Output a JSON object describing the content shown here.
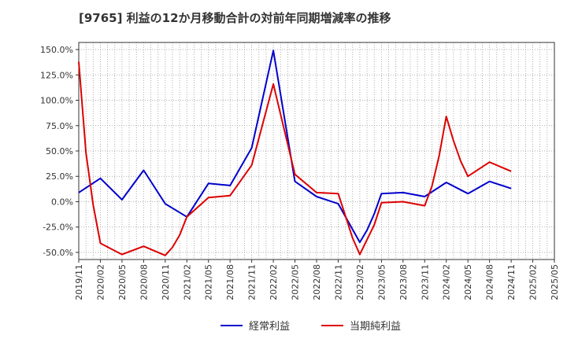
{
  "title": "[9765]  利益の12か月移動合計の対前年同期増減率の推移",
  "chart_data": {
    "type": "line",
    "title": "[9765]  利益の12か月移動合計の対前年同期増減率の推移",
    "xlabel": "",
    "ylabel": "",
    "ylim": [
      -57,
      157
    ],
    "y_ticks": [
      150,
      125,
      100,
      75,
      50,
      25,
      0,
      -25,
      -50
    ],
    "y_tick_labels": [
      "150.0%",
      "125.0%",
      "100.0%",
      "75.0%",
      "50.0%",
      "25.0%",
      "0.0%",
      "-25.0%",
      "-50.0%"
    ],
    "x_tick_labels": [
      "2019/11",
      "2020/02",
      "2020/05",
      "2020/08",
      "2020/11",
      "2021/02",
      "2021/05",
      "2021/08",
      "2021/11",
      "2022/02",
      "2022/05",
      "2022/08",
      "2022/11",
      "2023/02",
      "2023/05",
      "2023/08",
      "2023/11",
      "2024/02",
      "2024/05",
      "2024/08",
      "2024/11",
      "2025/02",
      "2025/05"
    ],
    "x_range_months": [
      0,
      66
    ],
    "grid": true,
    "legend_position": "bottom",
    "series": [
      {
        "name": "経常利益",
        "color": "#0000cc",
        "points": [
          {
            "m": 0,
            "v": 9
          },
          {
            "m": 3,
            "v": 23
          },
          {
            "m": 6,
            "v": 2
          },
          {
            "m": 9,
            "v": 31
          },
          {
            "m": 12,
            "v": -2
          },
          {
            "m": 15,
            "v": -15
          },
          {
            "m": 18,
            "v": 18
          },
          {
            "m": 21,
            "v": 16
          },
          {
            "m": 24,
            "v": 53
          },
          {
            "m": 27,
            "v": 149
          },
          {
            "m": 30,
            "v": 20
          },
          {
            "m": 33,
            "v": 5
          },
          {
            "m": 36,
            "v": -2
          },
          {
            "m": 39,
            "v": -40
          },
          {
            "m": 40,
            "v": -28
          },
          {
            "m": 41,
            "v": -12
          },
          {
            "m": 42,
            "v": 8
          },
          {
            "m": 45,
            "v": 9
          },
          {
            "m": 48,
            "v": 5
          },
          {
            "m": 51,
            "v": 19
          },
          {
            "m": 54,
            "v": 8
          },
          {
            "m": 57,
            "v": 20
          },
          {
            "m": 60,
            "v": 13
          }
        ]
      },
      {
        "name": "当期純利益",
        "color": "#dd0000",
        "points": [
          {
            "m": 0,
            "v": 138
          },
          {
            "m": 1,
            "v": 48
          },
          {
            "m": 2,
            "v": -3
          },
          {
            "m": 3,
            "v": -41
          },
          {
            "m": 6,
            "v": -52
          },
          {
            "m": 9,
            "v": -44
          },
          {
            "m": 12,
            "v": -53
          },
          {
            "m": 13,
            "v": -45
          },
          {
            "m": 14,
            "v": -33
          },
          {
            "m": 15,
            "v": -15
          },
          {
            "m": 18,
            "v": 4
          },
          {
            "m": 21,
            "v": 6
          },
          {
            "m": 24,
            "v": 36
          },
          {
            "m": 27,
            "v": 116
          },
          {
            "m": 30,
            "v": 27
          },
          {
            "m": 33,
            "v": 9
          },
          {
            "m": 36,
            "v": 8
          },
          {
            "m": 38,
            "v": -36
          },
          {
            "m": 39,
            "v": -52
          },
          {
            "m": 41,
            "v": -23
          },
          {
            "m": 42,
            "v": -1
          },
          {
            "m": 45,
            "v": 0
          },
          {
            "m": 48,
            "v": -4
          },
          {
            "m": 49,
            "v": 15
          },
          {
            "m": 50,
            "v": 45
          },
          {
            "m": 51,
            "v": 84
          },
          {
            "m": 52,
            "v": 60
          },
          {
            "m": 53,
            "v": 40
          },
          {
            "m": 54,
            "v": 25
          },
          {
            "m": 57,
            "v": 39
          },
          {
            "m": 60,
            "v": 30
          }
        ]
      }
    ]
  }
}
